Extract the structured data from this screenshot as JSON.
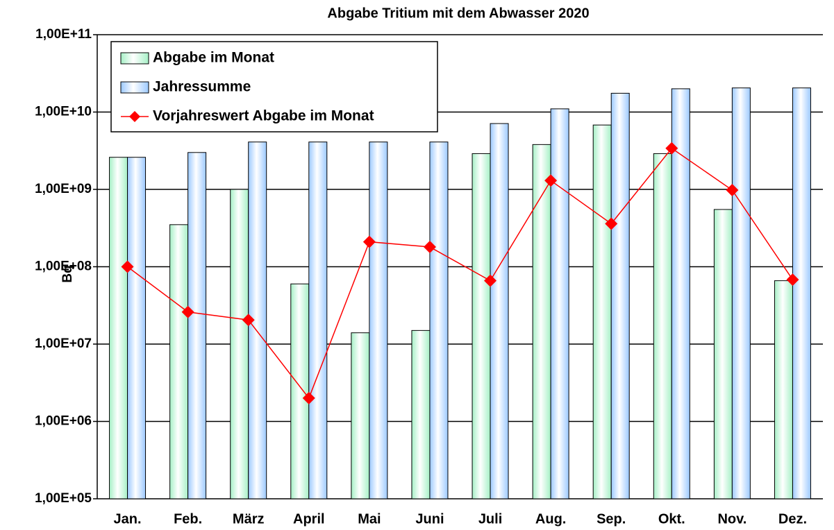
{
  "chart_data": {
    "type": "bar",
    "title": "Abgabe Tritium  mit dem Abwasser 2020",
    "y_label": "Bq",
    "categories": [
      "Jan.",
      "Feb.",
      "März",
      "April",
      "Mai",
      "Juni",
      "Juli",
      "Aug.",
      "Sep.",
      "Okt.",
      "Nov.",
      "Dez."
    ],
    "series": [
      {
        "name": "Abgabe im Monat",
        "type": "bar",
        "color": "#a6f0c6",
        "values": [
          2600000000,
          350000000,
          1000000000,
          60000000,
          14000000,
          15000000,
          2900000000,
          3800000000,
          6800000000,
          2900000000,
          550000000,
          66000000
        ]
      },
      {
        "name": "Jahressumme",
        "type": "bar",
        "color": "#9cc9ff",
        "values": [
          2600000000,
          3000000000,
          4100000000,
          4100000000,
          4100000000,
          4100000000,
          7100000000,
          11000000000,
          17500000000,
          20000000000,
          20500000000,
          20500000000
        ]
      },
      {
        "name": "Vorjahreswert Abgabe im Monat",
        "type": "line",
        "color": "#ff0000",
        "values": [
          100000000,
          26000000,
          20500000,
          2000000,
          210000000,
          180000000,
          66000000,
          1300000000,
          360000000,
          3400000000,
          980000000,
          68000000
        ]
      }
    ],
    "log_scale": true,
    "ylim": [
      100000,
      100000000000
    ],
    "yticks": [
      {
        "value": 100000,
        "label": "1,00E+05"
      },
      {
        "value": 1000000,
        "label": "1,00E+06"
      },
      {
        "value": 10000000,
        "label": "1,00E+07"
      },
      {
        "value": 100000000,
        "label": "1,00E+08"
      },
      {
        "value": 1000000000,
        "label": "1,00E+09"
      },
      {
        "value": 10000000000,
        "label": "1,00E+10"
      },
      {
        "value": 100000000000,
        "label": "1,00E+11"
      }
    ],
    "grid": true,
    "legend": "upper left"
  }
}
